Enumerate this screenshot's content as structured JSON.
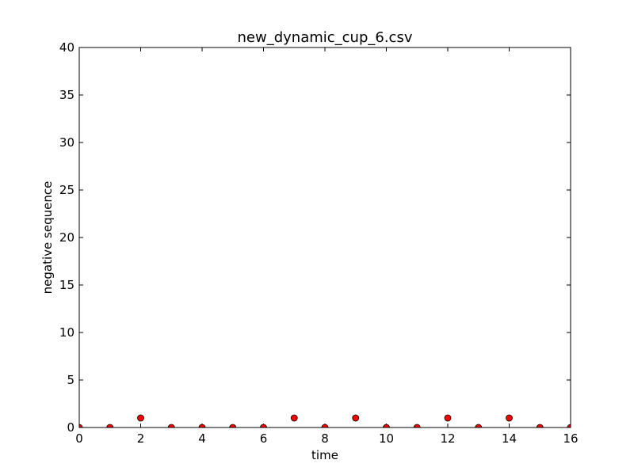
{
  "chart_data": {
    "type": "scatter",
    "title": "new_dynamic_cup_6.csv",
    "xlabel": "time",
    "ylabel": "negative sequence",
    "xlim": [
      0,
      16
    ],
    "ylim": [
      0,
      40
    ],
    "xticks": [
      0,
      2,
      4,
      6,
      8,
      10,
      12,
      14,
      16
    ],
    "yticks": [
      0,
      5,
      10,
      15,
      20,
      25,
      30,
      35,
      40
    ],
    "grid": false,
    "marker_color": "#ff0000",
    "marker_edge_color": "#000000",
    "series": [
      {
        "x": [
          0,
          1,
          2,
          3,
          4,
          5,
          6,
          7,
          8,
          9,
          10,
          11,
          12,
          13,
          14,
          15,
          16
        ],
        "y": [
          0,
          0,
          1,
          0,
          0,
          0,
          0,
          1,
          0,
          1,
          0,
          0,
          1,
          0,
          1,
          0,
          0
        ]
      }
    ]
  }
}
